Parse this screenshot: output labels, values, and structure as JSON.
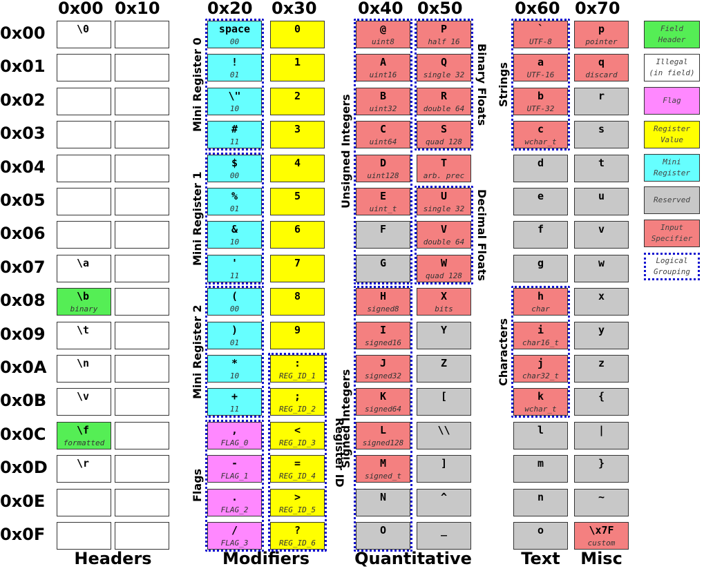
{
  "column_headers": [
    "0x00",
    "0x10",
    "0x20",
    "0x30",
    "0x40",
    "0x50",
    "0x60",
    "0x70"
  ],
  "row_headers": [
    "0x00",
    "0x01",
    "0x02",
    "0x03",
    "0x04",
    "0x05",
    "0x06",
    "0x07",
    "0x08",
    "0x09",
    "0x0A",
    "0x0B",
    "0x0C",
    "0x0D",
    "0x0E",
    "0x0F"
  ],
  "category_headers": [
    "Headers",
    "Modifiers",
    "Quantitative",
    "Text",
    "Misc"
  ],
  "colors": {
    "field_header": "#55ee55",
    "illegal": "#ffffff",
    "flag": "#ff88ff",
    "register_value": "#ffff00",
    "mini_register": "#66ffff",
    "reserved": "#c8c8c8",
    "input_specifier": "#f48080",
    "grouping": "#1010d0"
  },
  "columns": [
    {
      "cells": [
        {
          "char": "\\0",
          "sub": "",
          "type": "illegal"
        },
        {
          "char": "",
          "sub": "",
          "type": "illegal"
        },
        {
          "char": "",
          "sub": "",
          "type": "illegal"
        },
        {
          "char": "",
          "sub": "",
          "type": "illegal"
        },
        {
          "char": "",
          "sub": "",
          "type": "illegal"
        },
        {
          "char": "",
          "sub": "",
          "type": "illegal"
        },
        {
          "char": "",
          "sub": "",
          "type": "illegal"
        },
        {
          "char": "\\a",
          "sub": "",
          "type": "illegal"
        },
        {
          "char": "\\b",
          "sub": "binary",
          "type": "field_header"
        },
        {
          "char": "\\t",
          "sub": "",
          "type": "illegal"
        },
        {
          "char": "\\n",
          "sub": "",
          "type": "illegal"
        },
        {
          "char": "\\v",
          "sub": "",
          "type": "illegal"
        },
        {
          "char": "\\f",
          "sub": "formatted",
          "type": "field_header"
        },
        {
          "char": "\\r",
          "sub": "",
          "type": "illegal"
        },
        {
          "char": "",
          "sub": "",
          "type": "illegal"
        },
        {
          "char": "",
          "sub": "",
          "type": "illegal"
        }
      ]
    },
    {
      "cells": [
        {
          "char": "",
          "sub": "",
          "type": "illegal"
        },
        {
          "char": "",
          "sub": "",
          "type": "illegal"
        },
        {
          "char": "",
          "sub": "",
          "type": "illegal"
        },
        {
          "char": "",
          "sub": "",
          "type": "illegal"
        },
        {
          "char": "",
          "sub": "",
          "type": "illegal"
        },
        {
          "char": "",
          "sub": "",
          "type": "illegal"
        },
        {
          "char": "",
          "sub": "",
          "type": "illegal"
        },
        {
          "char": "",
          "sub": "",
          "type": "illegal"
        },
        {
          "char": "",
          "sub": "",
          "type": "illegal"
        },
        {
          "char": "",
          "sub": "",
          "type": "illegal"
        },
        {
          "char": "",
          "sub": "",
          "type": "illegal"
        },
        {
          "char": "",
          "sub": "",
          "type": "illegal"
        },
        {
          "char": "",
          "sub": "",
          "type": "illegal"
        },
        {
          "char": "",
          "sub": "",
          "type": "illegal"
        },
        {
          "char": "",
          "sub": "",
          "type": "illegal"
        },
        {
          "char": "",
          "sub": "",
          "type": "illegal"
        }
      ]
    },
    {
      "cells": [
        {
          "char": "space",
          "sub": "00",
          "type": "mini_register"
        },
        {
          "char": "!",
          "sub": "01",
          "type": "mini_register"
        },
        {
          "char": "\\\"",
          "sub": "10",
          "type": "mini_register"
        },
        {
          "char": "#",
          "sub": "11",
          "type": "mini_register"
        },
        {
          "char": "$",
          "sub": "00",
          "type": "mini_register"
        },
        {
          "char": "%",
          "sub": "01",
          "type": "mini_register"
        },
        {
          "char": "&",
          "sub": "10",
          "type": "mini_register"
        },
        {
          "char": "'",
          "sub": "11",
          "type": "mini_register"
        },
        {
          "char": "(",
          "sub": "00",
          "type": "mini_register"
        },
        {
          "char": ")",
          "sub": "01",
          "type": "mini_register"
        },
        {
          "char": "*",
          "sub": "10",
          "type": "mini_register"
        },
        {
          "char": "+",
          "sub": "11",
          "type": "mini_register"
        },
        {
          "char": ",",
          "sub": "FLAG_0",
          "type": "flag"
        },
        {
          "char": "-",
          "sub": "FLAG_1",
          "type": "flag"
        },
        {
          "char": ".",
          "sub": "FLAG_2",
          "type": "flag"
        },
        {
          "char": "/",
          "sub": "FLAG_3",
          "type": "flag"
        }
      ]
    },
    {
      "cells": [
        {
          "char": "0",
          "sub": "",
          "type": "register_value"
        },
        {
          "char": "1",
          "sub": "",
          "type": "register_value"
        },
        {
          "char": "2",
          "sub": "",
          "type": "register_value"
        },
        {
          "char": "3",
          "sub": "",
          "type": "register_value"
        },
        {
          "char": "4",
          "sub": "",
          "type": "register_value"
        },
        {
          "char": "5",
          "sub": "",
          "type": "register_value"
        },
        {
          "char": "6",
          "sub": "",
          "type": "register_value"
        },
        {
          "char": "7",
          "sub": "",
          "type": "register_value"
        },
        {
          "char": "8",
          "sub": "",
          "type": "register_value"
        },
        {
          "char": "9",
          "sub": "",
          "type": "register_value"
        },
        {
          "char": ":",
          "sub": "REG_ID_1",
          "type": "register_value"
        },
        {
          "char": ";",
          "sub": "REG_ID_2",
          "type": "register_value"
        },
        {
          "char": "<",
          "sub": "REG_ID_3",
          "type": "register_value"
        },
        {
          "char": "=",
          "sub": "REG_ID_4",
          "type": "register_value"
        },
        {
          "char": ">",
          "sub": "REG_ID_5",
          "type": "register_value"
        },
        {
          "char": "?",
          "sub": "REG_ID_6",
          "type": "register_value"
        }
      ]
    },
    {
      "cells": [
        {
          "char": "@",
          "sub": "uint8",
          "type": "input_specifier"
        },
        {
          "char": "A",
          "sub": "uint16",
          "type": "input_specifier"
        },
        {
          "char": "B",
          "sub": "uint32",
          "type": "input_specifier"
        },
        {
          "char": "C",
          "sub": "uint64",
          "type": "input_specifier"
        },
        {
          "char": "D",
          "sub": "uint128",
          "type": "input_specifier"
        },
        {
          "char": "E",
          "sub": "uint_t",
          "type": "input_specifier"
        },
        {
          "char": "F",
          "sub": "",
          "type": "reserved"
        },
        {
          "char": "G",
          "sub": "",
          "type": "reserved"
        },
        {
          "char": "H",
          "sub": "signed8",
          "type": "input_specifier"
        },
        {
          "char": "I",
          "sub": "signed16",
          "type": "input_specifier"
        },
        {
          "char": "J",
          "sub": "signed32",
          "type": "input_specifier"
        },
        {
          "char": "K",
          "sub": "signed64",
          "type": "input_specifier"
        },
        {
          "char": "L",
          "sub": "signed128",
          "type": "input_specifier"
        },
        {
          "char": "M",
          "sub": "signed_t",
          "type": "input_specifier"
        },
        {
          "char": "N",
          "sub": "",
          "type": "reserved"
        },
        {
          "char": "O",
          "sub": "",
          "type": "reserved"
        }
      ]
    },
    {
      "cells": [
        {
          "char": "P",
          "sub": "half 16",
          "type": "input_specifier"
        },
        {
          "char": "Q",
          "sub": "single 32",
          "type": "input_specifier"
        },
        {
          "char": "R",
          "sub": "double 64",
          "type": "input_specifier"
        },
        {
          "char": "S",
          "sub": "quad 128",
          "type": "input_specifier"
        },
        {
          "char": "T",
          "sub": "arb. prec",
          "type": "input_specifier"
        },
        {
          "char": "U",
          "sub": "single 32",
          "type": "input_specifier"
        },
        {
          "char": "V",
          "sub": "double 64",
          "type": "input_specifier"
        },
        {
          "char": "W",
          "sub": "quad 128",
          "type": "input_specifier"
        },
        {
          "char": "X",
          "sub": "bits",
          "type": "input_specifier"
        },
        {
          "char": "Y",
          "sub": "",
          "type": "reserved"
        },
        {
          "char": "Z",
          "sub": "",
          "type": "reserved"
        },
        {
          "char": "[",
          "sub": "",
          "type": "reserved"
        },
        {
          "char": "\\\\",
          "sub": "",
          "type": "reserved"
        },
        {
          "char": "]",
          "sub": "",
          "type": "reserved"
        },
        {
          "char": "^",
          "sub": "",
          "type": "reserved"
        },
        {
          "char": "_",
          "sub": "",
          "type": "reserved"
        }
      ]
    },
    {
      "cells": [
        {
          "char": "`",
          "sub": "UTF-8",
          "type": "input_specifier"
        },
        {
          "char": "a",
          "sub": "UTF-16",
          "type": "input_specifier"
        },
        {
          "char": "b",
          "sub": "UTF-32",
          "type": "input_specifier"
        },
        {
          "char": "c",
          "sub": "wchar_t",
          "type": "input_specifier"
        },
        {
          "char": "d",
          "sub": "",
          "type": "reserved"
        },
        {
          "char": "e",
          "sub": "",
          "type": "reserved"
        },
        {
          "char": "f",
          "sub": "",
          "type": "reserved"
        },
        {
          "char": "g",
          "sub": "",
          "type": "reserved"
        },
        {
          "char": "h",
          "sub": "char",
          "type": "input_specifier"
        },
        {
          "char": "i",
          "sub": "char16_t",
          "type": "input_specifier"
        },
        {
          "char": "j",
          "sub": "char32_t",
          "type": "input_specifier"
        },
        {
          "char": "k",
          "sub": "wchar_t",
          "type": "input_specifier"
        },
        {
          "char": "l",
          "sub": "",
          "type": "reserved"
        },
        {
          "char": "m",
          "sub": "",
          "type": "reserved"
        },
        {
          "char": "n",
          "sub": "",
          "type": "reserved"
        },
        {
          "char": "o",
          "sub": "",
          "type": "reserved"
        }
      ]
    },
    {
      "cells": [
        {
          "char": "p",
          "sub": "pointer",
          "type": "input_specifier"
        },
        {
          "char": "q",
          "sub": "discard",
          "type": "input_specifier"
        },
        {
          "char": "r",
          "sub": "",
          "type": "reserved"
        },
        {
          "char": "s",
          "sub": "",
          "type": "reserved"
        },
        {
          "char": "t",
          "sub": "",
          "type": "reserved"
        },
        {
          "char": "u",
          "sub": "",
          "type": "reserved"
        },
        {
          "char": "v",
          "sub": "",
          "type": "reserved"
        },
        {
          "char": "w",
          "sub": "",
          "type": "reserved"
        },
        {
          "char": "x",
          "sub": "",
          "type": "reserved"
        },
        {
          "char": "y",
          "sub": "",
          "type": "reserved"
        },
        {
          "char": "z",
          "sub": "",
          "type": "reserved"
        },
        {
          "char": "{",
          "sub": "",
          "type": "reserved"
        },
        {
          "char": "|",
          "sub": "",
          "type": "reserved"
        },
        {
          "char": "}",
          "sub": "",
          "type": "reserved"
        },
        {
          "char": "~",
          "sub": "",
          "type": "reserved"
        },
        {
          "char": "\\x7F",
          "sub": "custom",
          "type": "input_specifier"
        }
      ]
    }
  ],
  "groups": [
    {
      "label": "Mini Register 0",
      "col": 2,
      "col_end": 2,
      "row_start": 0,
      "row_end": 3
    },
    {
      "label": "Mini Register 1",
      "col": 2,
      "col_end": 2,
      "row_start": 4,
      "row_end": 7
    },
    {
      "label": "Mini Register 2",
      "col": 2,
      "col_end": 2,
      "row_start": 8,
      "row_end": 11
    },
    {
      "label": "Flags",
      "col": 2,
      "col_end": 2,
      "row_start": 12,
      "row_end": 15
    },
    {
      "label": "Register ID",
      "col": 3,
      "col_end": 3,
      "row_start": 10,
      "row_end": 15
    },
    {
      "label": "Unsigned Integers",
      "col": 4,
      "col_end": 4,
      "row_start": 0,
      "row_end": 7
    },
    {
      "label": "Signed Integers",
      "col": 4,
      "col_end": 4,
      "row_start": 8,
      "row_end": 15
    },
    {
      "label": "Binary Floats",
      "col": 5,
      "col_end": 5,
      "row_start": 0,
      "row_end": 3
    },
    {
      "label": "Decimal Floats",
      "col": 5,
      "col_end": 5,
      "row_start": 5,
      "row_end": 7
    },
    {
      "label": "Strings",
      "col": 6,
      "col_end": 6,
      "row_start": 0,
      "row_end": 3
    },
    {
      "label": "Characters",
      "col": 6,
      "col_end": 6,
      "row_start": 8,
      "row_end": 11
    }
  ],
  "legend": [
    {
      "label": "Field\nHeader",
      "type": "field_header"
    },
    {
      "label": "Illegal\n(in field)",
      "type": "illegal"
    },
    {
      "label": "Flag",
      "type": "flag"
    },
    {
      "label": "Register\nValue",
      "type": "register_value"
    },
    {
      "label": "Mini\nRegister",
      "type": "mini_register"
    },
    {
      "label": "Reserved",
      "type": "reserved"
    },
    {
      "label": "Input\nSpecifier",
      "type": "input_specifier"
    },
    {
      "label": "Logical\nGrouping",
      "type": "grouping"
    }
  ]
}
